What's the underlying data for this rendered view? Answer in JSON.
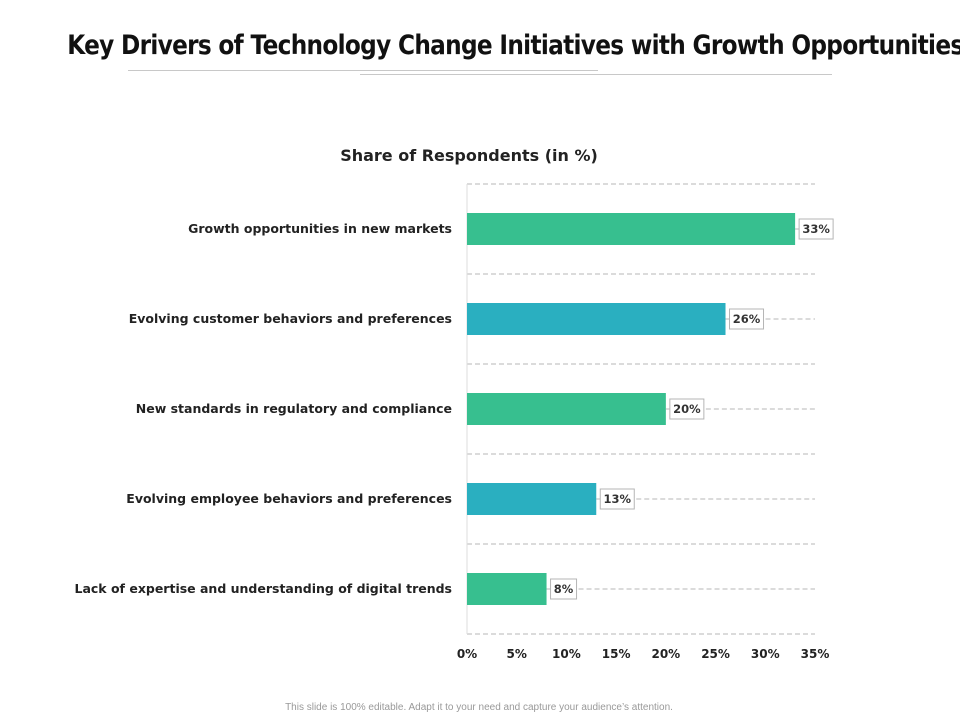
{
  "slide": {
    "title": "Key Drivers of Technology Change Initiatives with Growth Opportunities",
    "footer": "This slide is 100% editable. Adapt it to your need and capture your audience’s attention."
  },
  "colors": {
    "green": "#37BF8F",
    "teal": "#2AAFC0",
    "grid": "#cfcfcf",
    "label_border": "#b5b5b5"
  },
  "chart_data": {
    "type": "bar",
    "orientation": "horizontal",
    "title": "Share of Respondents (in %)",
    "xlabel": "",
    "ylabel": "",
    "xlim": [
      0,
      35
    ],
    "ticks": [
      0,
      5,
      10,
      15,
      20,
      25,
      30,
      35
    ],
    "tick_labels": [
      "0%",
      "5%",
      "10%",
      "15%",
      "20%",
      "25%",
      "30%",
      "35%"
    ],
    "grid": true,
    "categories": [
      "Growth opportunities in new markets",
      "Evolving customer behaviors and preferences",
      "New standards in regulatory and compliance",
      "Evolving employee behaviors and preferences",
      "Lack of expertise and understanding of digital trends"
    ],
    "values": [
      33,
      26,
      20,
      13,
      8
    ],
    "data_labels": [
      "33%",
      "26%",
      "20%",
      "13%",
      "8%"
    ],
    "bar_colors": [
      "#37BF8F",
      "#2AAFC0",
      "#37BF8F",
      "#2AAFC0",
      "#37BF8F"
    ]
  }
}
